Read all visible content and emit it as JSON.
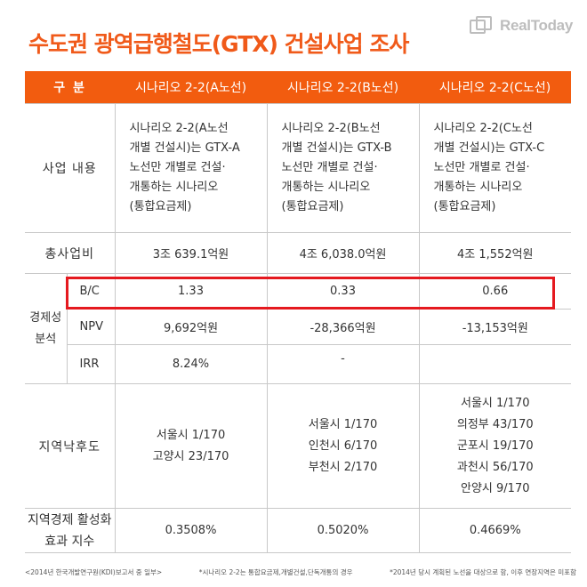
{
  "brand": {
    "logo_text": "RealToday",
    "logo_icon": "realtoday-logo-icon"
  },
  "title": "수도권 광역급행철도(GTX) 건설사업 조사",
  "table": {
    "headers": [
      "구 분",
      "시나리오 2-2(A노선)",
      "시나리오 2-2(B노선)",
      "시나리오 2-2(C노선)"
    ],
    "rows": {
      "business": {
        "label": "사업 내용",
        "values": [
          [
            "시나리오 2-2(A노선",
            "개별 건설시)는 GTX-A",
            "노선만 개별로 건설·",
            "개통하는 시나리오",
            "(통합요금제)"
          ],
          [
            "시나리오 2-2(B노선",
            "개별 건설시)는 GTX-B",
            "노선만 개별로 건설·",
            "개통하는 시나리오",
            "(통합요금제)"
          ],
          [
            "시나리오 2-2(C노선",
            "개별 건설시)는 GTX-C",
            "노선만 개별로 건설·",
            "개통하는 시나리오",
            "(통합요금제)"
          ]
        ]
      },
      "cost": {
        "label": "총사업비",
        "values": [
          "3조 639.1억원",
          "4조 6,038.0억원",
          "4조 1,552억원"
        ]
      },
      "econ": {
        "label": [
          "경제성",
          "분석"
        ],
        "bc": {
          "label": "B/C",
          "values": [
            "1.33",
            "0.33",
            "0.66"
          ]
        },
        "npv": {
          "label": "NPV",
          "values": [
            "9,692억원",
            "-28,366억원",
            "-13,153억원"
          ]
        },
        "irr": {
          "label": "IRR",
          "values": [
            "8.24%",
            "-",
            ""
          ]
        }
      },
      "region": {
        "label": "지역낙후도",
        "values": [
          [
            "서울시 1/170",
            "고양시 23/170"
          ],
          [
            "서울시 1/170",
            "인천시 6/170",
            "부천시 2/170"
          ],
          [
            "서울시 1/170",
            "의정부 43/170",
            "군포시 19/170",
            "과천시 56/170",
            "안양시 9/170"
          ]
        ]
      },
      "effect": {
        "label": [
          "지역경제 활성화",
          "효과 지수"
        ],
        "values": [
          "0.3508%",
          "0.5020%",
          "0.4669%"
        ]
      }
    }
  },
  "footnotes": [
    "<2014년 한국개발연구원(KDI)보고서 중 일부>",
    "*시나리오 2-2는 통합요금제,개별건설,단독개통의 경우",
    "*2014년 당시 계획된 노선을 대상으로 함, 이후 연장지역은 미포함"
  ],
  "colors": {
    "accent": "#f25c0f",
    "title": "#f05a1a",
    "highlight": "#e5191f",
    "border": "#c8c8c8"
  }
}
